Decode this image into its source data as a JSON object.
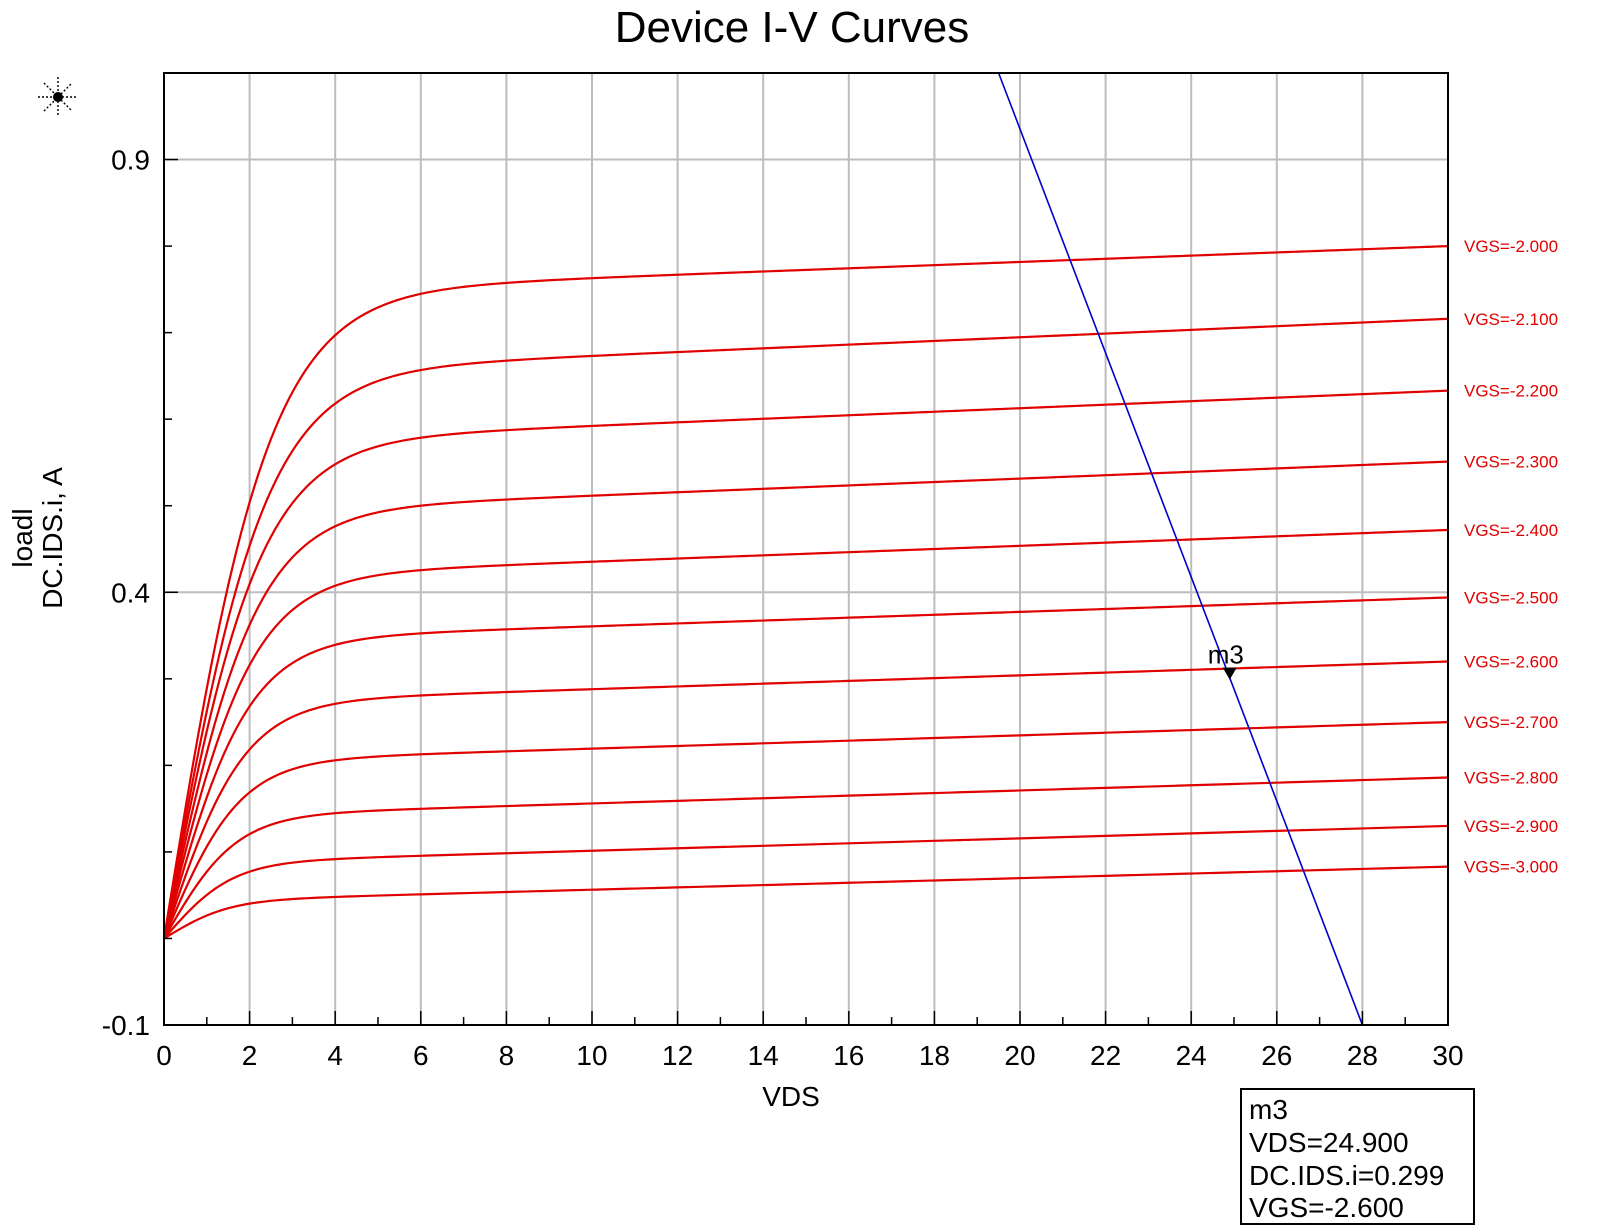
{
  "chart_data": {
    "type": "line",
    "title": "Device I-V Curves",
    "xlabel": "VDS",
    "ylabel_lines": [
      {
        "text": "loadl",
        "color": "#0000cc"
      },
      {
        "text": "DC.IDS.i, A",
        "color": "#e00000"
      }
    ],
    "xlim": [
      0,
      30
    ],
    "ylim": [
      -0.1,
      1.0
    ],
    "x_ticks": [
      0,
      2,
      4,
      6,
      8,
      10,
      12,
      14,
      16,
      18,
      20,
      22,
      24,
      26,
      28,
      30
    ],
    "x_tick_labels": [
      "0",
      "2",
      "4",
      "6",
      "8",
      "10",
      "12",
      "14",
      "16",
      "18",
      "20",
      "22",
      "24",
      "26",
      "28",
      "30"
    ],
    "x_minor_step": 1,
    "y_ticks": [
      0.9,
      0.4,
      -0.1
    ],
    "y_tick_labels": [
      "0.9",
      "0.4",
      "-0.1"
    ],
    "y_minor_step": 0.1,
    "grid": true,
    "curve_color": "#e00000",
    "curve_model": {
      "origin_current": 0.0,
      "knee_shape": "tanh",
      "description": "IDS = Isat * (1 + lambda*VDS) * tanh(VDS / Vk)"
    },
    "series": [
      {
        "name": "VGS=-2.000",
        "isat": 0.745,
        "vk": 2.45,
        "end_value": 0.8
      },
      {
        "name": "VGS=-2.100",
        "isat": 0.652,
        "vk": 2.35,
        "end_value": 0.716
      },
      {
        "name": "VGS=-2.200",
        "isat": 0.572,
        "vk": 2.25,
        "end_value": 0.633
      },
      {
        "name": "VGS=-2.300",
        "isat": 0.492,
        "vk": 2.15,
        "end_value": 0.551
      },
      {
        "name": "VGS=-2.400",
        "isat": 0.417,
        "vk": 2.05,
        "end_value": 0.472
      },
      {
        "name": "VGS=-2.500",
        "isat": 0.344,
        "vk": 1.95,
        "end_value": 0.394
      },
      {
        "name": "VGS=-2.600",
        "isat": 0.272,
        "vk": 1.85,
        "end_value": 0.32
      },
      {
        "name": "VGS=-2.700",
        "isat": 0.204,
        "vk": 1.75,
        "end_value": 0.25
      },
      {
        "name": "VGS=-2.800",
        "isat": 0.141,
        "vk": 1.65,
        "end_value": 0.186
      },
      {
        "name": "VGS=-2.900",
        "isat": 0.087,
        "vk": 1.55,
        "end_value": 0.13
      },
      {
        "name": "VGS=-3.000",
        "isat": 0.043,
        "vk": 1.45,
        "end_value": 0.083
      }
    ],
    "load_line": {
      "name": "loadl",
      "color": "#0000cc",
      "points": [
        [
          19.5,
          1.0
        ],
        [
          28.0,
          -0.1
        ]
      ]
    },
    "marker": {
      "label": "m3",
      "x": 24.9,
      "y": 0.299
    },
    "readout": {
      "lines": [
        "m3",
        "VDS=24.900",
        "DC.IDS.i=0.299",
        "VGS=-2.600"
      ]
    }
  }
}
